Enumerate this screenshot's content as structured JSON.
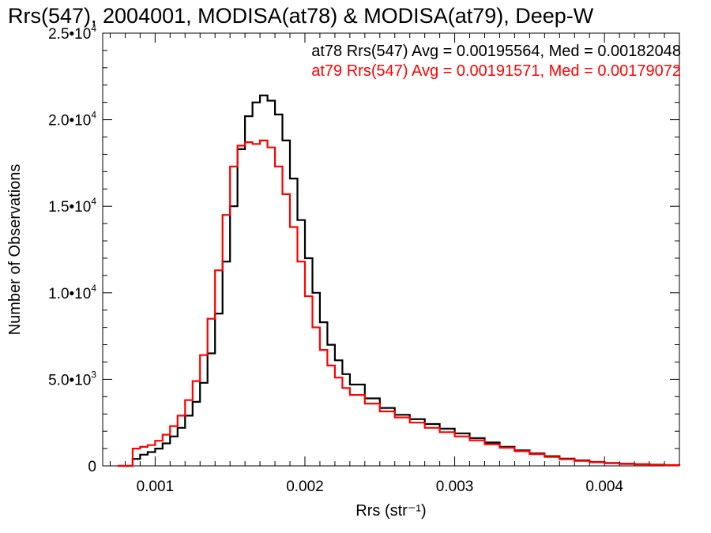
{
  "chart_data": {
    "type": "line",
    "title": "Rrs(547), 2004001, MODISA(at78) & MODISA(at79), Deep-W",
    "xlabel": "Rrs (str⁻¹)",
    "ylabel": "Number of Observations",
    "xlim": [
      0.00065,
      0.0045
    ],
    "ylim": [
      0,
      25000
    ],
    "x_ticks": [
      {
        "value": 0.001,
        "label": "0.001"
      },
      {
        "value": 0.002,
        "label": "0.002"
      },
      {
        "value": 0.003,
        "label": "0.003"
      },
      {
        "value": 0.004,
        "label": "0.004"
      }
    ],
    "y_ticks": [
      {
        "value": 0,
        "mant": "0",
        "exp": ""
      },
      {
        "value": 5000,
        "mant": "5.0•10",
        "exp": "3"
      },
      {
        "value": 10000,
        "mant": "1.0•10",
        "exp": "4"
      },
      {
        "value": 15000,
        "mant": "1.5•10",
        "exp": "4"
      },
      {
        "value": 20000,
        "mant": "2.0•10",
        "exp": "4"
      },
      {
        "value": 25000,
        "mant": "2.5•10",
        "exp": "4"
      }
    ],
    "grid": false,
    "step": true,
    "series": [
      {
        "name": "at78",
        "color": "#000000",
        "annotation": "at78 Rrs(547) Avg = 0.00195564, Med = 0.00182048",
        "x": [
          0.00075,
          0.0008,
          0.00085,
          0.0009,
          0.00095,
          0.001,
          0.00105,
          0.0011,
          0.00115,
          0.0012,
          0.00125,
          0.0013,
          0.00135,
          0.0014,
          0.00145,
          0.0015,
          0.00155,
          0.0016,
          0.00165,
          0.0017,
          0.00175,
          0.0018,
          0.00185,
          0.0019,
          0.00195,
          0.002,
          0.00205,
          0.0021,
          0.00215,
          0.0022,
          0.00225,
          0.0023,
          0.0024,
          0.0025,
          0.0026,
          0.0027,
          0.0028,
          0.0029,
          0.003,
          0.0031,
          0.0032,
          0.0033,
          0.0034,
          0.0035,
          0.0036,
          0.0037,
          0.0038,
          0.0039,
          0.004,
          0.0041,
          0.0042,
          0.0043,
          0.0044,
          0.0045
        ],
        "y": [
          0,
          0,
          400,
          650,
          800,
          1000,
          1300,
          1700,
          2200,
          2900,
          3700,
          4800,
          6500,
          8800,
          11800,
          15000,
          18300,
          20200,
          21000,
          21400,
          21100,
          20300,
          18800,
          16600,
          14200,
          12000,
          10000,
          8300,
          7000,
          6100,
          5300,
          4700,
          3900,
          3350,
          2950,
          2700,
          2420,
          2150,
          1880,
          1600,
          1350,
          1100,
          900,
          720,
          560,
          420,
          320,
          230,
          170,
          130,
          100,
          70,
          45,
          30
        ]
      },
      {
        "name": "at79",
        "color": "#ff0000",
        "annotation": "at79 Rrs(547) Avg = 0.00191571, Med = 0.00179072",
        "x": [
          0.00075,
          0.0008,
          0.00085,
          0.0009,
          0.00095,
          0.001,
          0.00105,
          0.0011,
          0.00115,
          0.0012,
          0.00125,
          0.0013,
          0.00135,
          0.0014,
          0.00145,
          0.0015,
          0.00155,
          0.0016,
          0.00165,
          0.0017,
          0.00175,
          0.0018,
          0.00185,
          0.0019,
          0.00195,
          0.002,
          0.00205,
          0.0021,
          0.00215,
          0.0022,
          0.00225,
          0.0023,
          0.0024,
          0.0025,
          0.0026,
          0.0027,
          0.0028,
          0.0029,
          0.003,
          0.0031,
          0.0032,
          0.0033,
          0.0034,
          0.0035,
          0.0036,
          0.0037,
          0.0038,
          0.0039,
          0.004,
          0.0041,
          0.0042,
          0.0043,
          0.0044,
          0.0045
        ],
        "y": [
          0,
          0,
          1000,
          1100,
          1200,
          1450,
          1800,
          2300,
          2900,
          3800,
          4900,
          6400,
          8500,
          11300,
          14500,
          17300,
          18500,
          18700,
          18600,
          18800,
          18400,
          17300,
          15700,
          13800,
          11800,
          9800,
          8000,
          6700,
          5800,
          5100,
          4500,
          4100,
          3600,
          3150,
          2800,
          2500,
          2200,
          1950,
          1700,
          1480,
          1250,
          1050,
          850,
          680,
          520,
          390,
          290,
          210,
          150,
          110,
          80,
          55,
          35,
          25
        ]
      }
    ]
  }
}
